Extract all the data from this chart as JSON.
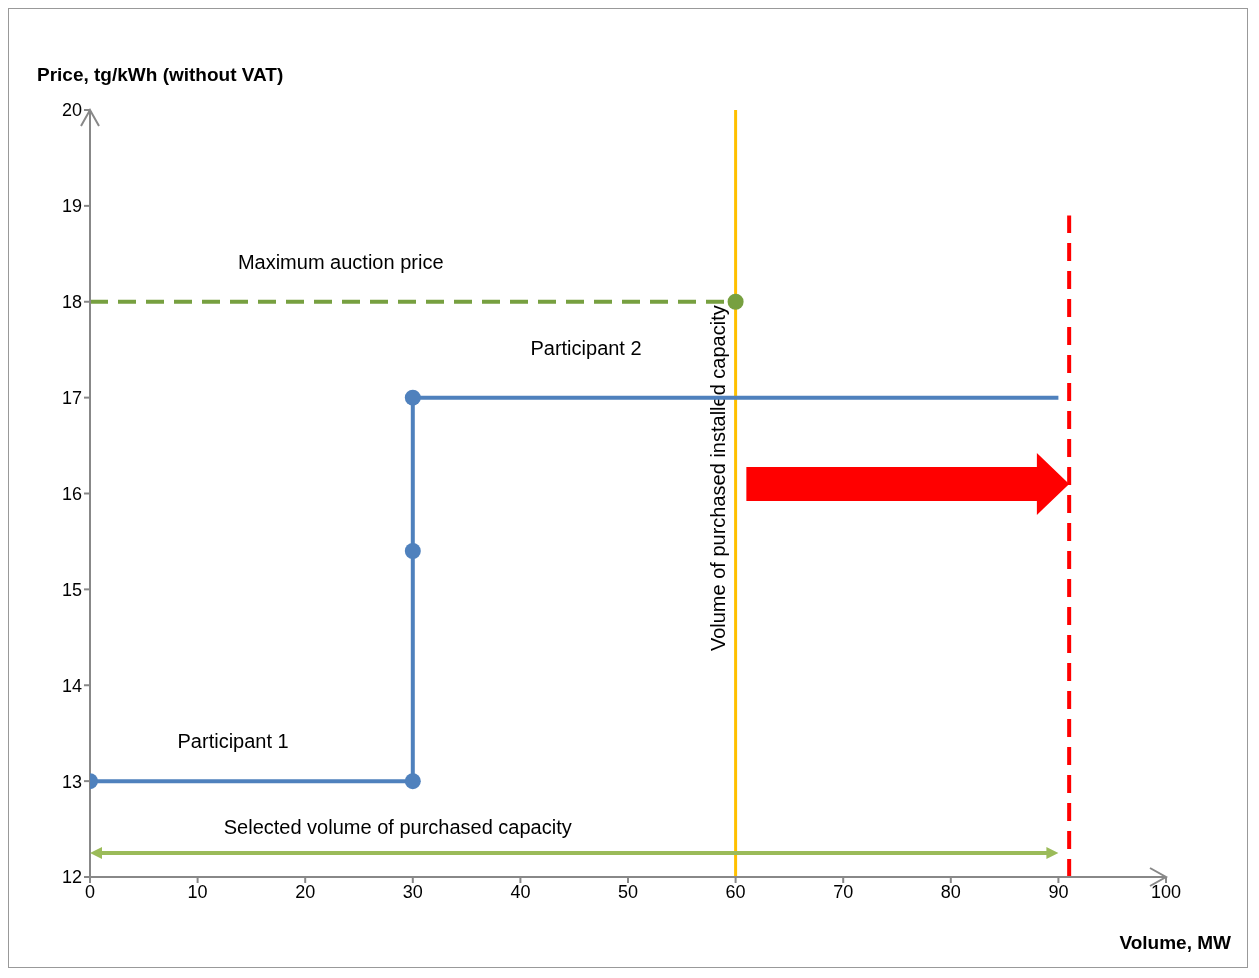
{
  "chart_data": {
    "type": "line",
    "xlabel": "Volume, MW",
    "ylabel": "Price, tg/kWh (without VAT)",
    "xlim": [
      0,
      100
    ],
    "xticks": [
      0,
      10,
      20,
      30,
      40,
      50,
      60,
      70,
      80,
      90,
      100
    ],
    "ylim": [
      12,
      20
    ],
    "yticks": [
      12,
      13,
      14,
      15,
      16,
      17,
      18,
      19,
      20
    ],
    "series": [
      {
        "x": [
          0,
          30,
          30,
          30,
          90
        ],
        "values": [
          13,
          13,
          15.4,
          17,
          17
        ],
        "color": "#4f81bd",
        "marker": "none"
      },
      {
        "type": "scatter",
        "x": [
          0,
          30,
          30,
          30
        ],
        "values": [
          13,
          13,
          15.4,
          17
        ],
        "color": "#4f81bd",
        "marker": "circle"
      },
      {
        "x": [
          0,
          60
        ],
        "values": [
          18,
          18
        ],
        "color": "#77a040",
        "marker": "none",
        "line_style": "dashed"
      },
      {
        "type": "scatter",
        "x": [
          60
        ],
        "values": [
          18
        ],
        "color": "#77a040",
        "marker": "circle"
      },
      {
        "x": [
          91,
          91
        ],
        "values": [
          12,
          18.9
        ],
        "color": "#ff0000",
        "marker": "none",
        "line_style": "dashed"
      }
    ],
    "ref_lines": [
      {
        "axis": "x",
        "value": 60,
        "label": "Volume of purchased installed capacity",
        "color": "#ffc000"
      }
    ],
    "annotations": [
      "Participant 1",
      "Participant 2",
      "Maximum auction price",
      "Selected volume of purchased capacity"
    ]
  }
}
